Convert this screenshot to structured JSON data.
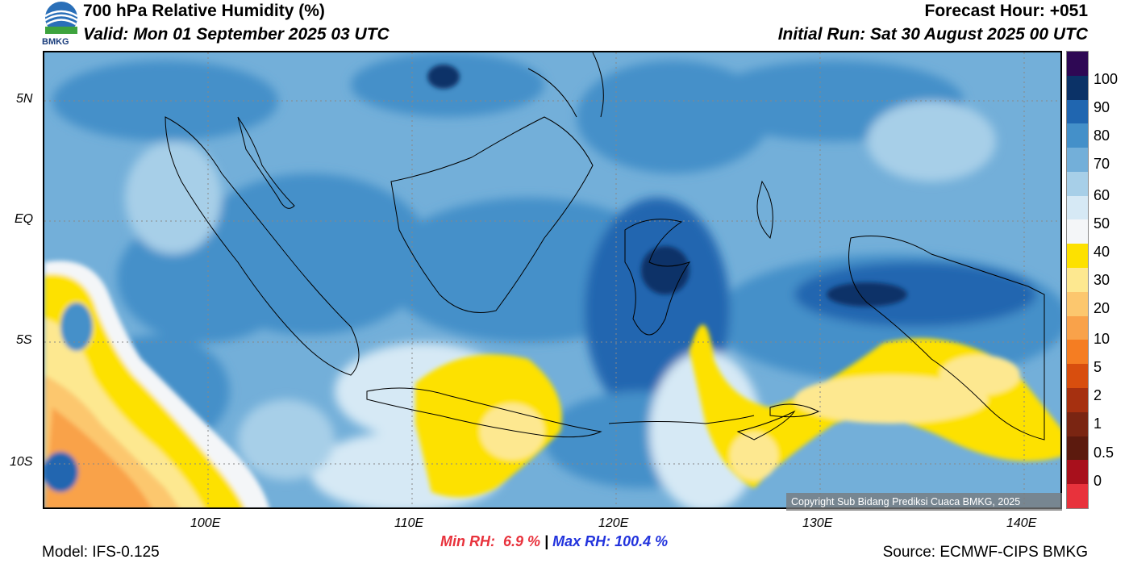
{
  "header": {
    "title": "700 hPa Relative Humidity (%)",
    "valid": "Valid: Mon 01 September 2025 03 UTC",
    "forecast_hour": "Forecast Hour: +051",
    "initial_run": "Initial Run: Sat 30 August 2025 00 UTC",
    "logo_text": "BMKG"
  },
  "axes": {
    "lat_labels": [
      "5N",
      "EQ",
      "5S",
      "10S"
    ],
    "lon_labels": [
      "100E",
      "110E",
      "120E",
      "130E",
      "140E"
    ]
  },
  "colorbar": {
    "labels": [
      "100",
      "90",
      "80",
      "70",
      "60",
      "50",
      "40",
      "30",
      "20",
      "10",
      "5",
      "2",
      "1",
      "0.5",
      "0"
    ],
    "colors": [
      "#2e0854",
      "#0b3267",
      "#2066b0",
      "#4490c9",
      "#73afd9",
      "#a7cfe8",
      "#d6e9f5",
      "#f4f6f8",
      "#fde100",
      "#fde890",
      "#fcc76e",
      "#f9a24a",
      "#f57d22",
      "#d84e0e",
      "#a63010",
      "#7a2512",
      "#5c1a0e",
      "#a8101c",
      "#e8323c"
    ]
  },
  "stats": {
    "min_label": "Min RH:",
    "min_value": "6.9 %",
    "separator": "|",
    "max_label": "Max RH:",
    "max_value": "100.4 %"
  },
  "footer": {
    "model": "Model: IFS-0.125",
    "source": "Source: ECMWF-CIPS BMKG",
    "copyright": "Copyright Sub Bidang Prediksi Cuaca BMKG, 2025"
  }
}
